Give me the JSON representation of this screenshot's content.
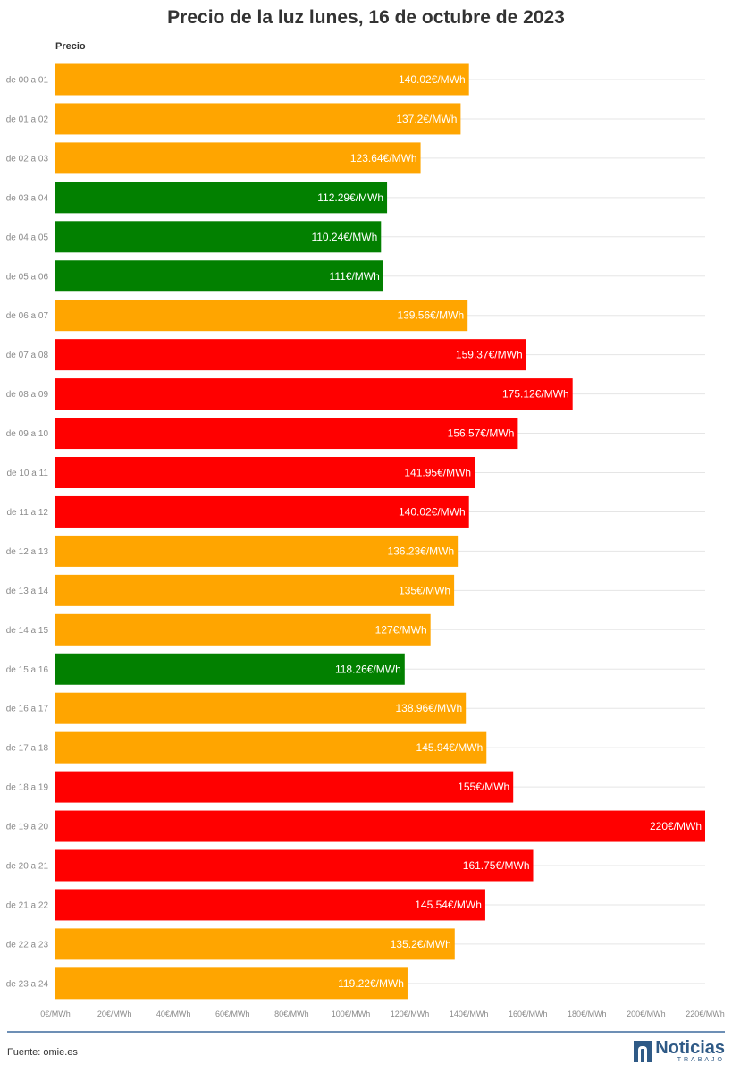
{
  "title": "Precio de la luz lunes, 16 de octubre de 2023",
  "legend_label": "Precio",
  "source": "Fuente: omie.es",
  "logo": {
    "name": "Noticias",
    "sub": "TRABAJO"
  },
  "colors": {
    "low": "#028000",
    "mid": "#FFA500",
    "high": "#FF0000",
    "grid": "#e5e5e5",
    "footer_line": "#6d8fb5"
  },
  "chart_data": {
    "type": "bar",
    "orientation": "horizontal",
    "title": "Precio de la luz lunes, 16 de octubre de 2023",
    "series_name": "Precio",
    "categories": [
      "de 00 a 01",
      "de 01 a 02",
      "de 02 a 03",
      "de 03 a 04",
      "de 04 a 05",
      "de 05 a 06",
      "de 06 a 07",
      "de 07 a 08",
      "de 08 a 09",
      "de 09 a 10",
      "de 10 a 11",
      "de 11 a 12",
      "de 12 a 13",
      "de 13 a 14",
      "de 14 a 15",
      "de 15 a 16",
      "de 16 a 17",
      "de 17 a 18",
      "de 18 a 19",
      "de 19 a 20",
      "de 20 a 21",
      "de 21 a 22",
      "de 22 a 23",
      "de 23 a 24"
    ],
    "values": [
      140.02,
      137.2,
      123.64,
      112.29,
      110.24,
      111,
      139.56,
      159.37,
      175.12,
      156.57,
      141.95,
      140.02,
      136.23,
      135,
      127,
      118.26,
      138.96,
      145.94,
      155,
      220,
      161.75,
      145.54,
      135.2,
      119.22
    ],
    "value_labels": [
      "140.02€/MWh",
      "137.2€/MWh",
      "123.64€/MWh",
      "112.29€/MWh",
      "110.24€/MWh",
      "111€/MWh",
      "139.56€/MWh",
      "159.37€/MWh",
      "175.12€/MWh",
      "156.57€/MWh",
      "141.95€/MWh",
      "140.02€/MWh",
      "136.23€/MWh",
      "135€/MWh",
      "127€/MWh",
      "118.26€/MWh",
      "138.96€/MWh",
      "145.94€/MWh",
      "155€/MWh",
      "220€/MWh",
      "161.75€/MWh",
      "145.54€/MWh",
      "135.2€/MWh",
      "119.22€/MWh"
    ],
    "color_levels": [
      "mid",
      "mid",
      "mid",
      "low",
      "low",
      "low",
      "mid",
      "high",
      "high",
      "high",
      "high",
      "high",
      "mid",
      "mid",
      "mid",
      "low",
      "mid",
      "mid",
      "high",
      "high",
      "high",
      "high",
      "mid",
      "mid"
    ],
    "xlim": [
      0,
      220
    ],
    "x_ticks": [
      0,
      20,
      40,
      60,
      80,
      100,
      120,
      140,
      160,
      180,
      200,
      220
    ],
    "x_tick_labels": [
      "0€/MWh",
      "20€/MWh",
      "40€/MWh",
      "60€/MWh",
      "80€/MWh",
      "100€/MWh",
      "120€/MWh",
      "140€/MWh",
      "160€/MWh",
      "180€/MWh",
      "200€/MWh",
      "220€/MWh"
    ],
    "grid": true
  }
}
